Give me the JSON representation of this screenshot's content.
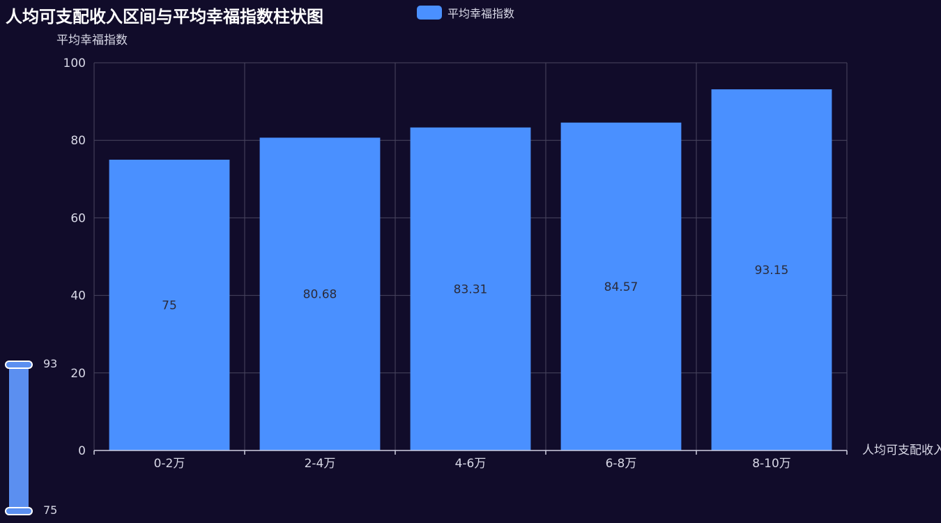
{
  "chart_data": {
    "type": "bar",
    "title": "人均可支配收入区间与平均幸福指数柱状图",
    "xlabel": "人均可支配收入",
    "ylabel": "平均幸福指数",
    "categories": [
      "0-2万",
      "2-4万",
      "4-6万",
      "6-8万",
      "8-10万"
    ],
    "series": [
      {
        "name": "平均幸福指数",
        "values": [
          75,
          80.68,
          83.31,
          84.57,
          93.15
        ]
      }
    ],
    "ylim": [
      0,
      100
    ],
    "yticks": [
      0,
      20,
      40,
      60,
      80,
      100
    ],
    "grid": true,
    "legend": "top-center",
    "bar_color": "#4a90ff",
    "visual_map": {
      "max_label": "93",
      "min_label": "75",
      "color": "#5b8ff0"
    }
  }
}
